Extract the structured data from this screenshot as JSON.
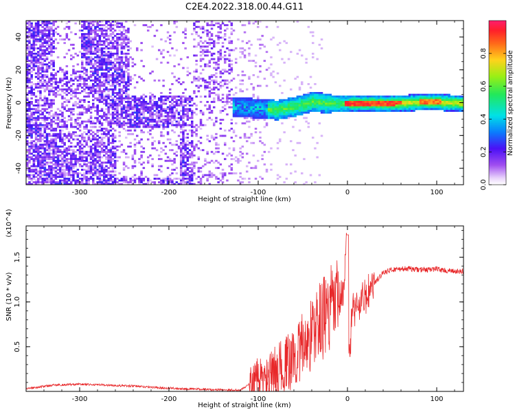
{
  "title": "C2E4.2022.318.00.44.G11",
  "chart_data": [
    {
      "type": "heatmap",
      "xlabel": "Height of straight line (km)",
      "ylabel": "Frequency (Hz)",
      "xlim": [
        -360,
        130
      ],
      "ylim": [
        -50,
        50
      ],
      "x_ticks": [
        -300,
        -200,
        -100,
        0,
        100
      ],
      "y_ticks": [
        -40,
        -20,
        0,
        20,
        40
      ],
      "colorbar": {
        "label": "Normalized spectral amplitude",
        "range": [
          0,
          1
        ],
        "ticks": [
          "0.0",
          "0.2",
          "0.4",
          "0.6",
          "0.8"
        ]
      },
      "ridge": [
        {
          "x": -130,
          "y": -2
        },
        {
          "x": -100,
          "y": -3
        },
        {
          "x": -80,
          "y": -4
        },
        {
          "x": -60,
          "y": -2
        },
        {
          "x": -40,
          "y": 1
        },
        {
          "x": -20,
          "y": 0
        },
        {
          "x": 0,
          "y": 0
        },
        {
          "x": 50,
          "y": 0
        },
        {
          "x": 90,
          "y": 1
        },
        {
          "x": 130,
          "y": 0
        }
      ]
    },
    {
      "type": "line",
      "xlabel": "Height of straight line (km)",
      "ylabel": "SNR (10 * v/v)",
      "y_multiplier": "(x10^4)",
      "xlim": [
        -360,
        130
      ],
      "ylim": [
        0,
        18500
      ],
      "x_ticks": [
        -300,
        -200,
        -100,
        0,
        100
      ],
      "y_ticks": [
        {
          "value": 5000,
          "label": "0.5"
        },
        {
          "value": 10000,
          "label": "1.0"
        },
        {
          "value": 15000,
          "label": "1.5"
        }
      ],
      "color": "#e8282a",
      "series": [
        {
          "x": [
            -360,
            -330,
            -300,
            -270,
            -240,
            -210,
            -180,
            -150,
            -120,
            -110,
            -100,
            -90,
            -80,
            -70,
            -60,
            -50,
            -40,
            -30,
            -20,
            -10,
            -5,
            0,
            2,
            5,
            10,
            20,
            30,
            40,
            50,
            60,
            70,
            80,
            90,
            100,
            110,
            120,
            130
          ],
          "values": [
            300,
            700,
            800,
            700,
            600,
            400,
            300,
            200,
            150,
            800,
            1700,
            1200,
            2500,
            2800,
            3800,
            5000,
            6500,
            8000,
            9000,
            10000,
            10500,
            17500,
            3000,
            9000,
            9500,
            10500,
            12000,
            13300,
            13600,
            13700,
            13700,
            13600,
            13600,
            13700,
            13500,
            13400,
            13400
          ]
        }
      ]
    }
  ]
}
